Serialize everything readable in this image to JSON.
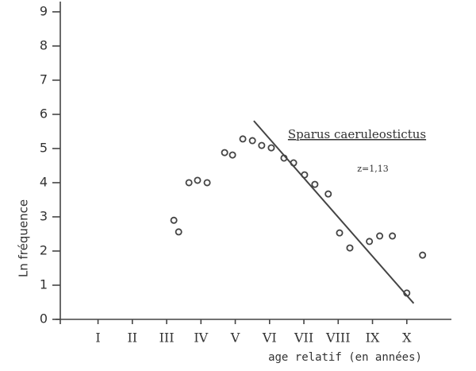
{
  "chart_data": {
    "type": "scatter",
    "title": "Sparus caeruleostictus",
    "annotation": "z=1,13",
    "x_label": "age relatif (en années)",
    "y_label": "Ln fréquence",
    "xlim": [
      -0.1,
      11.3
    ],
    "ylim": [
      0,
      9.3
    ],
    "xticks": [
      {
        "value": 1,
        "label": "I"
      },
      {
        "value": 2,
        "label": "II"
      },
      {
        "value": 3,
        "label": "III"
      },
      {
        "value": 4,
        "label": "IV"
      },
      {
        "value": 5,
        "label": "V"
      },
      {
        "value": 6,
        "label": "VI"
      },
      {
        "value": 7,
        "label": "VII"
      },
      {
        "value": 8,
        "label": "VIII"
      },
      {
        "value": 9,
        "label": "IX"
      },
      {
        "value": 10,
        "label": "X"
      }
    ],
    "yticks": [
      0,
      1,
      2,
      3,
      4,
      5,
      6,
      7,
      8,
      9
    ],
    "color": "#444444",
    "x": [
      3.21,
      3.35,
      3.65,
      3.9,
      4.18,
      4.69,
      4.92,
      5.22,
      5.5,
      5.77,
      6.05,
      6.42,
      6.7,
      7.02,
      7.32,
      7.71,
      8.04,
      8.34,
      8.91,
      9.21,
      9.58,
      10.0,
      10.46
    ],
    "values": [
      2.9,
      2.56,
      4.0,
      4.07,
      4.0,
      4.88,
      4.81,
      5.28,
      5.23,
      5.09,
      5.02,
      4.72,
      4.58,
      4.23,
      3.95,
      3.67,
      2.53,
      2.09,
      2.28,
      2.44,
      2.44,
      0.77,
      1.88
    ],
    "fit_line": {
      "x": [
        5.54,
        10.2
      ],
      "y": [
        5.81,
        0.47
      ]
    }
  }
}
